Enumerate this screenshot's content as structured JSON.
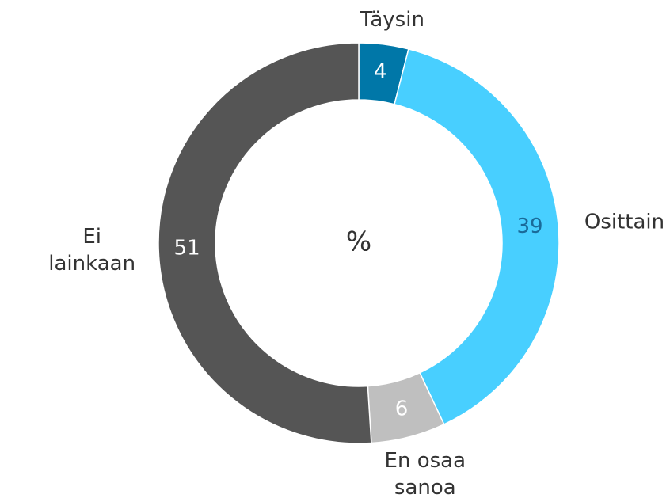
{
  "chart_data": {
    "type": "donut",
    "center_label": "%",
    "categories": [
      "Täysin",
      "Osittain",
      "En osaa sanoa",
      "Ei lainkaan"
    ],
    "values": [
      4,
      39,
      6,
      51
    ],
    "colors": [
      "#0077a8",
      "#48cfff",
      "#bfbfbf",
      "#555555"
    ]
  }
}
